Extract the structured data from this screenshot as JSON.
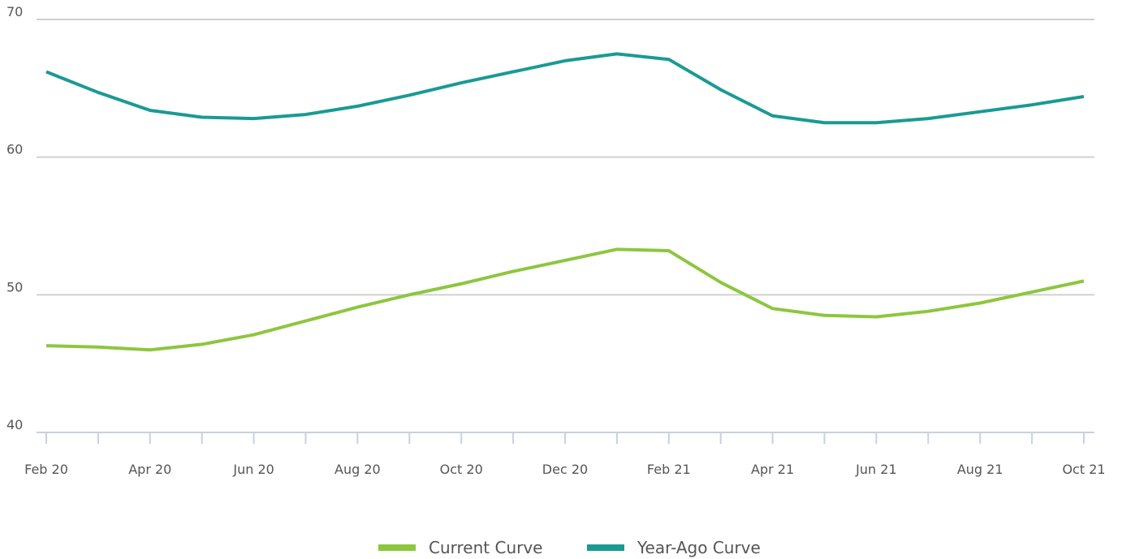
{
  "chart_data": {
    "type": "line",
    "categories": [
      "Feb 20",
      null,
      "Apr 20",
      null,
      "Jun 20",
      null,
      "Aug 20",
      null,
      "Oct 20",
      null,
      "Dec 20",
      null,
      "Feb 21",
      null,
      "Apr 21",
      null,
      "Jun 21",
      null,
      "Aug 21",
      null,
      "Oct 21"
    ],
    "series": [
      {
        "name": "Current Curve",
        "color": "#8dc63f",
        "values": [
          46.3,
          46.2,
          46.0,
          46.4,
          47.1,
          48.1,
          49.1,
          50.0,
          50.8,
          51.7,
          52.5,
          53.3,
          53.2,
          50.9,
          49.0,
          48.5,
          48.4,
          48.8,
          49.4,
          50.2,
          51.0
        ]
      },
      {
        "name": "Year-Ago Curve",
        "color": "#1a9a94",
        "values": [
          66.2,
          64.7,
          63.4,
          62.9,
          62.8,
          63.1,
          63.7,
          64.5,
          65.4,
          66.2,
          67.0,
          67.5,
          67.1,
          64.9,
          63.0,
          62.5,
          62.5,
          62.8,
          63.3,
          63.8,
          64.4
        ]
      }
    ],
    "ylim": [
      40,
      70
    ],
    "yticks": [
      40,
      50,
      60,
      70
    ],
    "grid": true,
    "legend": "bottom"
  }
}
